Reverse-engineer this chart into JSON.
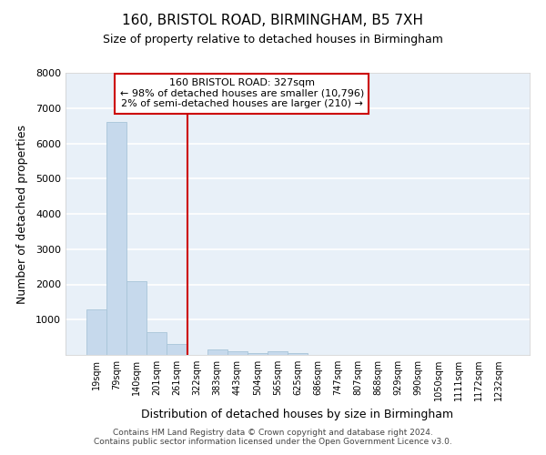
{
  "title": "160, BRISTOL ROAD, BIRMINGHAM, B5 7XH",
  "subtitle": "Size of property relative to detached houses in Birmingham",
  "xlabel": "Distribution of detached houses by size in Birmingham",
  "ylabel": "Number of detached properties",
  "bar_color": "#c6d9ec",
  "bar_edgecolor": "#a8c4d8",
  "background_color": "#e8f0f8",
  "grid_color": "#ffffff",
  "vline_color": "#cc0000",
  "annotation_lines": [
    "160 BRISTOL ROAD: 327sqm",
    "← 98% of detached houses are smaller (10,796)",
    "2% of semi-detached houses are larger (210) →"
  ],
  "annotation_box_edgecolor": "#cc0000",
  "categories": [
    "19sqm",
    "79sqm",
    "140sqm",
    "201sqm",
    "261sqm",
    "322sqm",
    "383sqm",
    "443sqm",
    "504sqm",
    "565sqm",
    "625sqm",
    "686sqm",
    "747sqm",
    "807sqm",
    "868sqm",
    "929sqm",
    "990sqm",
    "1050sqm",
    "1111sqm",
    "1172sqm",
    "1232sqm"
  ],
  "values": [
    1300,
    6600,
    2100,
    650,
    300,
    0,
    150,
    110,
    60,
    110,
    60,
    0,
    0,
    0,
    0,
    0,
    0,
    0,
    0,
    0,
    0
  ],
  "ylim": [
    0,
    8000
  ],
  "yticks": [
    0,
    1000,
    2000,
    3000,
    4000,
    5000,
    6000,
    7000,
    8000
  ],
  "vline_index": 5,
  "footer_lines": [
    "Contains HM Land Registry data © Crown copyright and database right 2024.",
    "Contains public sector information licensed under the Open Government Licence v3.0."
  ]
}
